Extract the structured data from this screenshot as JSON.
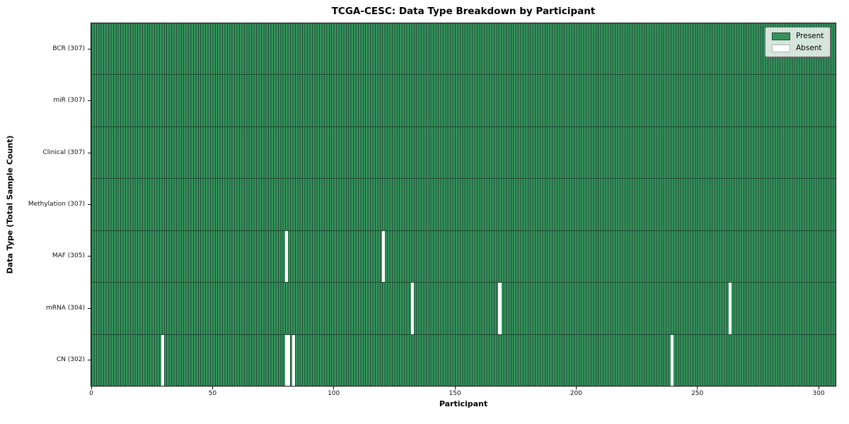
{
  "chart_data": {
    "type": "heatmap",
    "title": "TCGA-CESC: Data Type Breakdown by Participant",
    "xlabel": "Participant",
    "ylabel": "Data Type (Total Sample Count)",
    "n_participants": 307,
    "xlim": [
      0,
      307
    ],
    "x_ticks": [
      0,
      50,
      100,
      150,
      200,
      250,
      300
    ],
    "grid": false,
    "legend_position": "upper right",
    "legend": [
      {
        "name": "present",
        "label": "Present",
        "color": "#37935e",
        "edge": "#1e4c33"
      },
      {
        "name": "absent",
        "label": "Absent",
        "color": "#ffffff",
        "edge": "#b5b5b5"
      }
    ],
    "rows": [
      {
        "data_type": "BCR",
        "total": 307,
        "label": "BCR (307)",
        "absent_participants": []
      },
      {
        "data_type": "miR",
        "total": 307,
        "label": "miR (307)",
        "absent_participants": []
      },
      {
        "data_type": "Clinical",
        "total": 307,
        "label": "Clinical (307)",
        "absent_participants": []
      },
      {
        "data_type": "Methylation",
        "total": 307,
        "label": "Methylation (307)",
        "absent_participants": []
      },
      {
        "data_type": "MAF",
        "total": 305,
        "label": "MAF (305)",
        "absent_participants": [
          80,
          120
        ]
      },
      {
        "data_type": "mRNA",
        "total": 304,
        "label": "mRNA (304)",
        "absent_participants": [
          132,
          168,
          263
        ]
      },
      {
        "data_type": "CN",
        "total": 302,
        "label": "CN (302)",
        "absent_participants": [
          29,
          80,
          81,
          83,
          239
        ]
      }
    ],
    "colors": {
      "present": "#37935e",
      "present_edge": "#1e4c33",
      "absent": "#ffffff",
      "row_divider": "#1d4a31",
      "spine": "#111111"
    }
  }
}
